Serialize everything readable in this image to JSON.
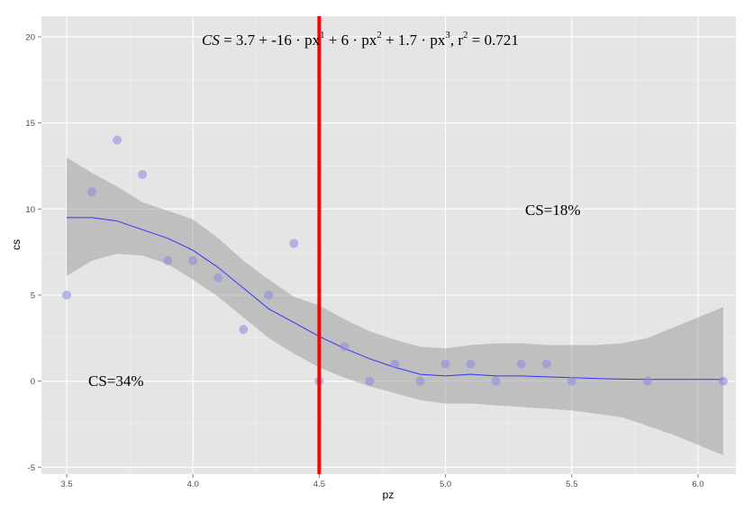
{
  "chart_data": {
    "type": "scatter",
    "xlabel": "pz",
    "ylabel": "cs",
    "xlim": [
      3.4,
      6.15
    ],
    "ylim": [
      -5.4,
      21.2
    ],
    "x_ticks": [
      3.5,
      4.0,
      4.5,
      5.0,
      5.5,
      6.0
    ],
    "x_tick_labels": [
      "3.5",
      "4.0",
      "4.5",
      "5.0",
      "5.5",
      "6.0"
    ],
    "y_ticks": [
      -5,
      0,
      5,
      10,
      15,
      20
    ],
    "y_tick_labels": [
      "-5",
      "0",
      "5",
      "10",
      "15",
      "20"
    ],
    "grid": true,
    "points": {
      "x": [
        3.5,
        3.6,
        3.7,
        3.8,
        3.9,
        4.0,
        4.1,
        4.2,
        4.3,
        4.4,
        4.5,
        4.6,
        4.7,
        4.8,
        4.9,
        5.0,
        5.1,
        5.2,
        5.3,
        5.4,
        5.5,
        5.8,
        6.1
      ],
      "y": [
        5,
        11,
        14,
        12,
        7,
        7,
        6,
        3,
        5,
        8,
        0,
        2,
        0,
        1,
        0,
        1,
        1,
        0,
        1,
        1,
        0,
        0,
        0
      ]
    },
    "smooth": {
      "x": [
        3.5,
        3.6,
        3.7,
        3.8,
        3.9,
        4.0,
        4.1,
        4.2,
        4.3,
        4.4,
        4.5,
        4.6,
        4.7,
        4.8,
        4.9,
        5.0,
        5.1,
        5.2,
        5.3,
        5.4,
        5.5,
        5.6,
        5.7,
        5.8,
        5.9,
        6.0,
        6.1
      ],
      "y": [
        9.5,
        9.5,
        9.3,
        8.8,
        8.3,
        7.6,
        6.6,
        5.4,
        4.2,
        3.4,
        2.6,
        1.9,
        1.3,
        0.8,
        0.4,
        0.3,
        0.4,
        0.3,
        0.3,
        0.25,
        0.2,
        0.15,
        0.12,
        0.1,
        0.1,
        0.1,
        0.1
      ],
      "lower": [
        6.1,
        7.0,
        7.4,
        7.3,
        6.8,
        5.9,
        4.9,
        3.7,
        2.5,
        1.6,
        0.8,
        0.2,
        -0.3,
        -0.7,
        -1.1,
        -1.3,
        -1.3,
        -1.4,
        -1.5,
        -1.6,
        -1.7,
        -1.9,
        -2.1,
        -2.6,
        -3.1,
        -3.7,
        -4.3
      ],
      "upper": [
        13.0,
        12.1,
        11.3,
        10.4,
        9.9,
        9.4,
        8.3,
        7.0,
        5.9,
        4.9,
        4.4,
        3.6,
        2.9,
        2.4,
        2.0,
        1.9,
        2.1,
        2.2,
        2.2,
        2.1,
        2.1,
        2.1,
        2.2,
        2.5,
        3.1,
        3.7,
        4.3
      ]
    },
    "vline_x": 4.5,
    "colors": {
      "panel": "#e5e5e5",
      "grid": "#ffffff",
      "point": "#8f8fe0",
      "smooth_line": "#3333ff",
      "ribbon": "#999999",
      "vline": "#ff0000"
    },
    "annotations": {
      "formula_prefix": "CS",
      "formula_body": " = 3.7 + -16 · px",
      "formula_exp1": "1",
      "formula_mid1": " + 6 · px",
      "formula_exp2": "2",
      "formula_mid2": " + 1.7 · px",
      "formula_exp3": "3",
      "formula_mid3": ",  r",
      "formula_exp4": "2",
      "formula_end": " = 0.721",
      "left_label": "CS=34%",
      "right_label": "CS=18%"
    }
  }
}
